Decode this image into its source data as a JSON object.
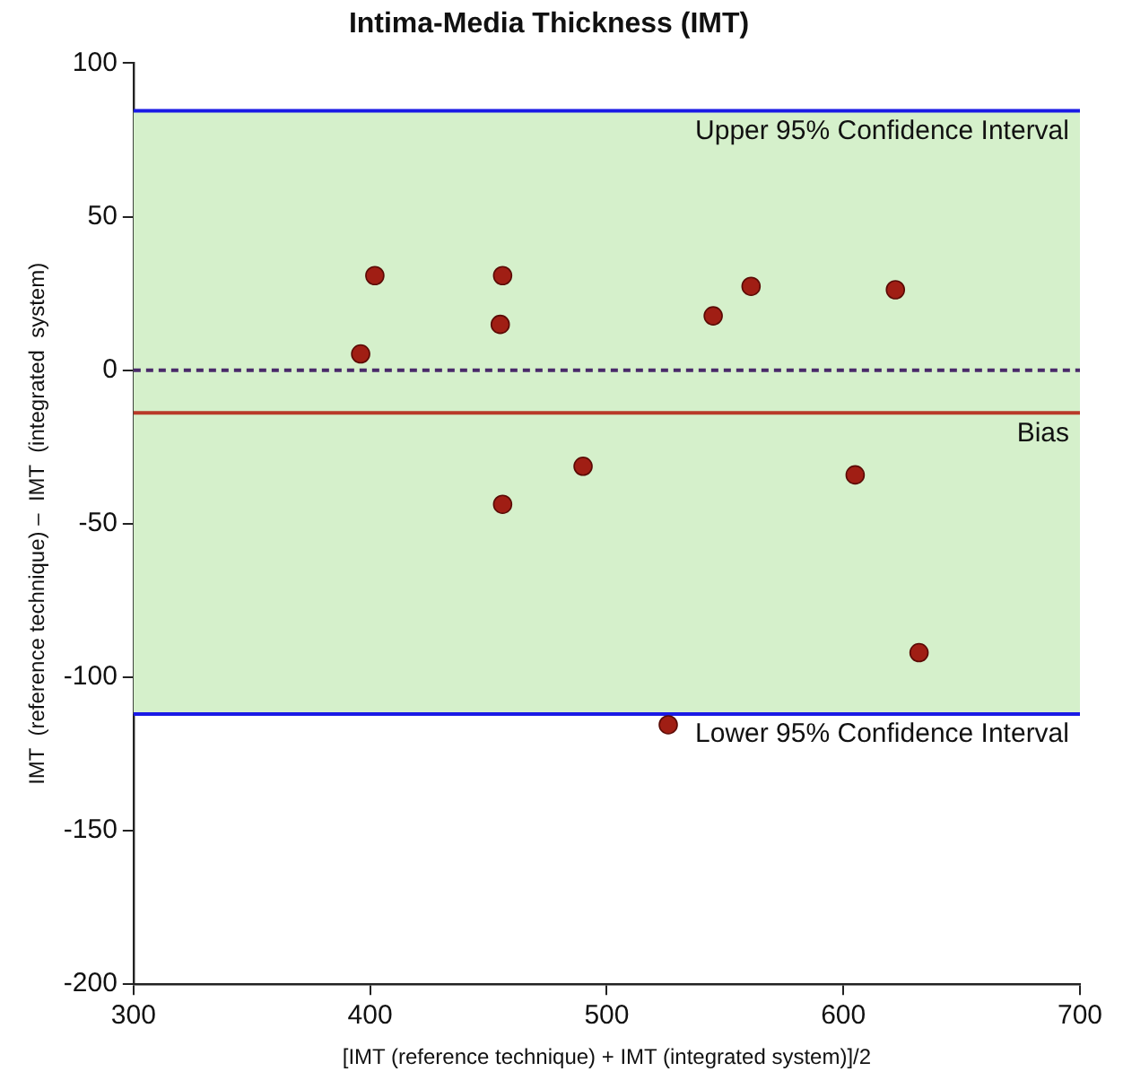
{
  "chart_data": {
    "type": "scatter",
    "title": "Intima-Media Thickness (IMT)",
    "xlabel": "[IMT (reference technique) + IMT (integrated system)]/2",
    "ylabel": "IMT  (reference technique) –  IMT  (integrated  system)",
    "x": [
      396,
      402,
      456,
      455,
      456,
      490,
      545,
      561,
      622,
      605,
      632,
      526
    ],
    "series": [
      {
        "color": "#a01e14",
        "values": [
          5.3,
          30.8,
          30.8,
          14.9,
          -43.7,
          -31.3,
          17.7,
          27.3,
          26.2,
          -34.1,
          -92,
          -115.5
        ]
      }
    ],
    "xlim": [
      300,
      700
    ],
    "xticks": [
      300,
      400,
      500,
      600,
      700
    ],
    "ylim": [
      -200,
      100
    ],
    "yticks": [
      100,
      50,
      0,
      -50,
      -100,
      -150,
      -200
    ],
    "bands": [
      {
        "axis": "y",
        "from": -112,
        "to": 84.5,
        "color": "#d5f0cb"
      }
    ],
    "ref_lines": [
      {
        "axis": "y",
        "value": 84.5,
        "label": "Upper 95% Confidence Interval",
        "color": "#1a1ae6",
        "line_style": "solid"
      },
      {
        "axis": "y",
        "value": -112,
        "label": "Lower 95% Confidence Interval",
        "color": "#1a1ae6",
        "line_style": "solid"
      },
      {
        "axis": "y",
        "value": -13.9,
        "label": "Bias",
        "color": "#b83a28",
        "line_style": "solid"
      },
      {
        "axis": "y",
        "value": 0,
        "color": "#4a2a6a",
        "line_style": "dashed"
      }
    ],
    "grid": false,
    "legend": false,
    "marker": "circle"
  }
}
